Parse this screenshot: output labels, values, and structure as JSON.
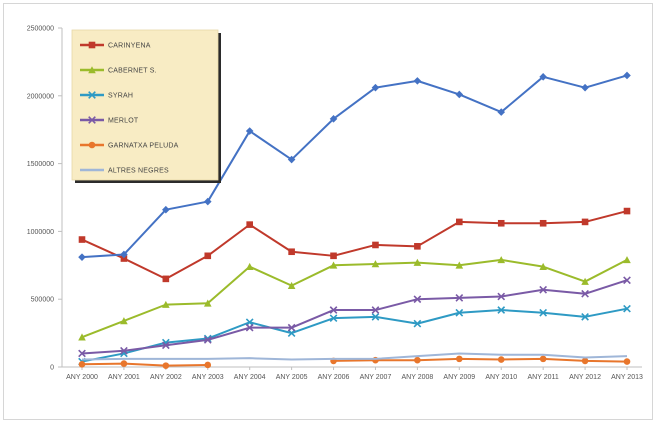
{
  "chart_data": {
    "type": "line",
    "title": "",
    "xlabel": "",
    "ylabel": "",
    "categories": [
      "ANY 2000",
      "ANY 2001",
      "ANY 2002",
      "ANY 2003",
      "ANY 2004",
      "ANY 2005",
      "ANY 2006",
      "ANY 2007",
      "ANY 2008",
      "ANY 2009",
      "ANY 2010",
      "ANY 2011",
      "ANY 2012",
      "ANY 2013"
    ],
    "y_ticks": [
      {
        "value": 0,
        "label": "0"
      },
      {
        "value": 500000,
        "label": "500000"
      },
      {
        "value": 1000000,
        "label": "1000000"
      },
      {
        "value": 1500000,
        "label": "1500000"
      },
      {
        "value": 2000000,
        "label": "2000000"
      },
      {
        "value": 2500000,
        "label": "2500000"
      }
    ],
    "ylim": [
      0,
      2500000
    ],
    "grid": false,
    "legend_position": "top-left",
    "series": [
      {
        "name": "CARINYENA",
        "color": "#c0392b",
        "marker": "square",
        "values": [
          940000,
          800000,
          650000,
          820000,
          1050000,
          850000,
          820000,
          900000,
          890000,
          1070000,
          1060000,
          1060000,
          1070000,
          1150000
        ]
      },
      {
        "name": "CABERNET S.",
        "color": "#9bbb2b",
        "marker": "triangle",
        "values": [
          220000,
          340000,
          460000,
          470000,
          740000,
          600000,
          750000,
          760000,
          770000,
          750000,
          790000,
          740000,
          630000,
          790000
        ]
      },
      {
        "name": "SYRAH",
        "color": "#2e9ac4",
        "marker": "x",
        "values": [
          40000,
          100000,
          180000,
          210000,
          330000,
          250000,
          360000,
          370000,
          320000,
          400000,
          420000,
          400000,
          370000,
          430000
        ]
      },
      {
        "name": "MERLOT",
        "color": "#7a5aa6",
        "marker": "x",
        "values": [
          100000,
          120000,
          160000,
          200000,
          290000,
          290000,
          420000,
          420000,
          500000,
          510000,
          520000,
          570000,
          540000,
          640000
        ]
      },
      {
        "name": "GARNATXA PELUDA",
        "color": "#e8762c",
        "marker": "circle",
        "values": [
          20000,
          25000,
          10000,
          15000,
          null,
          null,
          45000,
          50000,
          50000,
          60000,
          55000,
          60000,
          45000,
          40000
        ]
      },
      {
        "name": "ALTRES NEGRES",
        "color": "#9fb6d8",
        "marker": "none",
        "values": [
          55000,
          60000,
          60000,
          60000,
          65000,
          55000,
          60000,
          60000,
          80000,
          100000,
          90000,
          90000,
          70000,
          80000
        ]
      },
      {
        "name": "",
        "color": "#4472c4",
        "marker": "diamond",
        "values": [
          810000,
          830000,
          1160000,
          1220000,
          1740000,
          1530000,
          1830000,
          2060000,
          2110000,
          2010000,
          1880000,
          2140000,
          2060000,
          2150000
        ]
      }
    ]
  }
}
